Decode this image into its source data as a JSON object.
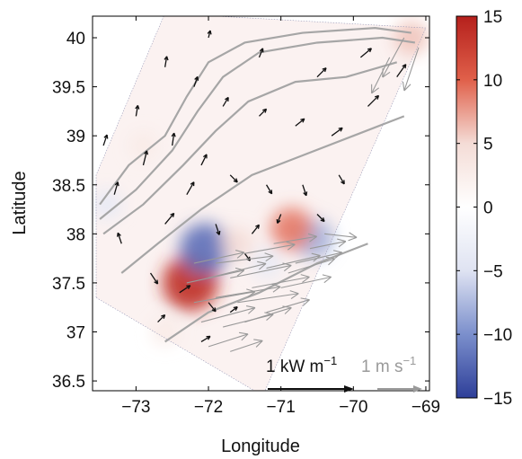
{
  "chart_data": {
    "type": "map",
    "xlabel": "Longitude",
    "ylabel": "Latitude",
    "xlim": [
      -73.6,
      -68.95
    ],
    "ylim": [
      36.4,
      40.22
    ],
    "x_ticks": [
      {
        "value": -73,
        "label": "−73"
      },
      {
        "value": -72,
        "label": "−72"
      },
      {
        "value": -71,
        "label": "−71"
      },
      {
        "value": -70,
        "label": "−70"
      },
      {
        "value": -69,
        "label": "−69"
      }
    ],
    "y_ticks": [
      {
        "value": 36.5,
        "label": "36.5"
      },
      {
        "value": 37,
        "label": "37"
      },
      {
        "value": 37.5,
        "label": "37.5"
      },
      {
        "value": 38,
        "label": "38"
      },
      {
        "value": 38.5,
        "label": "38.5"
      },
      {
        "value": 39,
        "label": "39"
      },
      {
        "value": 39.5,
        "label": "39.5"
      },
      {
        "value": 40,
        "label": "40"
      }
    ],
    "colorbar": {
      "min": -15,
      "max": 15,
      "ticks": [
        {
          "value": 15,
          "label": "15"
        },
        {
          "value": 10,
          "label": "10"
        },
        {
          "value": 5,
          "label": "5"
        },
        {
          "value": 0,
          "label": "0"
        },
        {
          "value": -5,
          "label": "−5"
        },
        {
          "value": -10,
          "label": "−10"
        },
        {
          "value": -15,
          "label": "−15"
        }
      ],
      "colors": [
        "#2e3f99",
        "#7b8fcc",
        "#dfe3f2",
        "#ffffff",
        "#f4dcd6",
        "#e0604a",
        "#b5201c"
      ]
    },
    "field_blobs": [
      {
        "lon": -72.25,
        "lat": 37.5,
        "value": 14
      },
      {
        "lon": -72.05,
        "lat": 37.85,
        "value": -12
      },
      {
        "lon": -70.55,
        "lat": 37.95,
        "value": -8
      },
      {
        "lon": -70.85,
        "lat": 38.05,
        "value": 9
      },
      {
        "lon": -71.6,
        "lat": 37.9,
        "value": 5
      },
      {
        "lon": -71.2,
        "lat": 37.7,
        "value": -4
      },
      {
        "lon": -73.4,
        "lat": 38.3,
        "value": -4
      },
      {
        "lon": -69.2,
        "lat": 40.0,
        "value": 6
      },
      {
        "lon": -72.9,
        "lat": 38.9,
        "value": 3
      },
      {
        "lon": -72.6,
        "lat": 37.0,
        "value": 3
      }
    ],
    "domain_polygon": [
      [
        -73.55,
        37.35
      ],
      [
        -71.25,
        36.35
      ],
      [
        -69.0,
        40.1
      ],
      [
        -72.6,
        40.25
      ],
      [
        -73.55,
        38.6
      ]
    ],
    "isobaths": [
      {
        "level": 1,
        "points": [
          [
            -73.5,
            38.3
          ],
          [
            -73.1,
            38.7
          ],
          [
            -72.6,
            39.0
          ],
          [
            -72.3,
            39.4
          ],
          [
            -72.0,
            39.75
          ],
          [
            -71.5,
            39.95
          ],
          [
            -70.7,
            40.05
          ],
          [
            -69.7,
            40.1
          ],
          [
            -69.2,
            40.05
          ]
        ]
      },
      {
        "level": 2,
        "points": [
          [
            -73.5,
            38.15
          ],
          [
            -73.0,
            38.45
          ],
          [
            -72.5,
            38.85
          ],
          [
            -72.15,
            39.25
          ],
          [
            -71.8,
            39.6
          ],
          [
            -71.3,
            39.85
          ],
          [
            -70.5,
            39.95
          ],
          [
            -69.6,
            40.0
          ],
          [
            -69.15,
            39.95
          ]
        ]
      },
      {
        "level": 3,
        "points": [
          [
            -73.45,
            38.0
          ],
          [
            -72.9,
            38.3
          ],
          [
            -72.35,
            38.7
          ],
          [
            -71.9,
            39.05
          ],
          [
            -71.45,
            39.35
          ],
          [
            -70.8,
            39.55
          ],
          [
            -70.1,
            39.6
          ],
          [
            -69.4,
            39.75
          ]
        ]
      },
      {
        "level": 4,
        "points": [
          [
            -73.2,
            37.6
          ],
          [
            -72.7,
            37.9
          ],
          [
            -72.1,
            38.25
          ],
          [
            -71.4,
            38.6
          ],
          [
            -70.7,
            38.8
          ],
          [
            -70.0,
            39.0
          ],
          [
            -69.3,
            39.2
          ]
        ]
      },
      {
        "level": 5,
        "points": [
          [
            -72.6,
            36.9
          ],
          [
            -72.0,
            37.2
          ],
          [
            -71.3,
            37.4
          ],
          [
            -70.5,
            37.7
          ],
          [
            -69.8,
            37.9
          ]
        ]
      }
    ],
    "energy_flux_vectors": [
      {
        "lon": -72.6,
        "lat": 39.7,
        "u": 0.05,
        "v": 0.3
      },
      {
        "lon": -72.2,
        "lat": 39.5,
        "u": 0.1,
        "v": 0.28
      },
      {
        "lon": -71.8,
        "lat": 39.3,
        "u": 0.15,
        "v": 0.25
      },
      {
        "lon": -71.3,
        "lat": 39.2,
        "u": 0.2,
        "v": 0.2
      },
      {
        "lon": -70.8,
        "lat": 39.1,
        "u": 0.25,
        "v": 0.2
      },
      {
        "lon": -70.3,
        "lat": 39.0,
        "u": 0.3,
        "v": 0.22
      },
      {
        "lon": -69.8,
        "lat": 39.3,
        "u": 0.3,
        "v": 0.3
      },
      {
        "lon": -69.4,
        "lat": 39.6,
        "u": 0.25,
        "v": 0.35
      },
      {
        "lon": -73.3,
        "lat": 38.4,
        "u": 0.1,
        "v": 0.35
      },
      {
        "lon": -72.9,
        "lat": 38.7,
        "u": 0.1,
        "v": 0.4
      },
      {
        "lon": -72.5,
        "lat": 38.9,
        "u": 0.05,
        "v": 0.35
      },
      {
        "lon": -72.1,
        "lat": 38.7,
        "u": 0.15,
        "v": 0.3
      },
      {
        "lon": -71.7,
        "lat": 38.6,
        "u": 0.2,
        "v": -0.2
      },
      {
        "lon": -71.2,
        "lat": 38.5,
        "u": 0.15,
        "v": -0.25
      },
      {
        "lon": -70.7,
        "lat": 38.5,
        "u": 0.1,
        "v": -0.3
      },
      {
        "lon": -70.2,
        "lat": 38.6,
        "u": 0.15,
        "v": -0.25
      },
      {
        "lon": -73.2,
        "lat": 37.9,
        "u": -0.1,
        "v": 0.3
      },
      {
        "lon": -72.8,
        "lat": 37.6,
        "u": 0.2,
        "v": -0.3
      },
      {
        "lon": -72.4,
        "lat": 37.4,
        "u": 0.3,
        "v": 0.2
      },
      {
        "lon": -72.0,
        "lat": 37.3,
        "u": 0.2,
        "v": -0.25
      },
      {
        "lon": -71.5,
        "lat": 37.8,
        "u": 0.15,
        "v": -0.2
      },
      {
        "lon": -71.0,
        "lat": 38.2,
        "u": -0.1,
        "v": -0.25
      },
      {
        "lon": -70.5,
        "lat": 38.2,
        "u": 0.2,
        "v": -0.2
      },
      {
        "lon": -72.6,
        "lat": 38.1,
        "u": 0.25,
        "v": 0.3
      },
      {
        "lon": -72.3,
        "lat": 38.4,
        "u": 0.2,
        "v": 0.35
      },
      {
        "lon": -71.9,
        "lat": 38.1,
        "u": 0.1,
        "v": -0.3
      },
      {
        "lon": -71.4,
        "lat": 38.0,
        "u": 0.2,
        "v": 0.25
      },
      {
        "lon": -72.7,
        "lat": 37.1,
        "u": 0.2,
        "v": 0.2
      },
      {
        "lon": -72.1,
        "lat": 36.9,
        "u": 0.25,
        "v": 0.15
      },
      {
        "lon": -71.7,
        "lat": 37.2,
        "u": 0.2,
        "v": 0.15
      },
      {
        "lon": -73.45,
        "lat": 38.9,
        "u": 0.1,
        "v": 0.3
      },
      {
        "lon": -73.0,
        "lat": 39.2,
        "u": 0.05,
        "v": 0.3
      },
      {
        "lon": -72.0,
        "lat": 40.0,
        "u": 0.05,
        "v": 0.2
      },
      {
        "lon": -71.3,
        "lat": 39.8,
        "u": 0.1,
        "v": 0.25
      },
      {
        "lon": -70.5,
        "lat": 39.6,
        "u": 0.25,
        "v": 0.25
      },
      {
        "lon": -69.9,
        "lat": 39.8,
        "u": 0.3,
        "v": 0.25
      }
    ],
    "velocity_vectors": [
      {
        "lon": -72.3,
        "lat": 37.5,
        "u": 1.6,
        "v": 0.35
      },
      {
        "lon": -72.2,
        "lat": 37.3,
        "u": 1.7,
        "v": 0.3
      },
      {
        "lon": -72.0,
        "lat": 37.55,
        "u": 1.6,
        "v": 0.4
      },
      {
        "lon": -71.9,
        "lat": 37.35,
        "u": 1.8,
        "v": 0.3
      },
      {
        "lon": -71.7,
        "lat": 37.55,
        "u": 1.7,
        "v": 0.35
      },
      {
        "lon": -71.6,
        "lat": 37.3,
        "u": 1.7,
        "v": 0.25
      },
      {
        "lon": -71.4,
        "lat": 37.45,
        "u": 1.6,
        "v": 0.3
      },
      {
        "lon": -71.2,
        "lat": 37.65,
        "u": 1.5,
        "v": 0.35
      },
      {
        "lon": -71.0,
        "lat": 37.45,
        "u": 1.4,
        "v": 0.3
      },
      {
        "lon": -70.8,
        "lat": 37.7,
        "u": 1.3,
        "v": 0.3
      },
      {
        "lon": -70.6,
        "lat": 37.85,
        "u": 1.0,
        "v": 0.2
      },
      {
        "lon": -70.4,
        "lat": 38.0,
        "u": 0.9,
        "v": -0.1
      },
      {
        "lon": -72.1,
        "lat": 37.1,
        "u": 1.5,
        "v": 0.4
      },
      {
        "lon": -71.8,
        "lat": 37.05,
        "u": 1.4,
        "v": 0.35
      },
      {
        "lon": -71.5,
        "lat": 37.1,
        "u": 1.3,
        "v": 0.4
      },
      {
        "lon": -71.2,
        "lat": 37.2,
        "u": 1.2,
        "v": 0.35
      },
      {
        "lon": -72.0,
        "lat": 36.85,
        "u": 1.1,
        "v": 0.35
      },
      {
        "lon": -71.7,
        "lat": 36.8,
        "u": 0.9,
        "v": 0.3
      },
      {
        "lon": -71.9,
        "lat": 37.7,
        "u": 1.6,
        "v": 0.2
      },
      {
        "lon": -71.5,
        "lat": 37.8,
        "u": 1.4,
        "v": 0.25
      },
      {
        "lon": -71.1,
        "lat": 37.9,
        "u": 1.2,
        "v": 0.2
      },
      {
        "lon": -70.9,
        "lat": 37.6,
        "u": 1.3,
        "v": 0.4
      },
      {
        "lon": -72.2,
        "lat": 37.7,
        "u": 1.4,
        "v": 0.3
      },
      {
        "lon": -69.5,
        "lat": 39.8,
        "u": -0.5,
        "v": -1.0
      },
      {
        "lon": -69.3,
        "lat": 40.0,
        "u": -0.6,
        "v": -1.1
      },
      {
        "lon": -69.1,
        "lat": 39.9,
        "u": -0.4,
        "v": -1.2
      }
    ],
    "scale_vectors": {
      "energy_flux": {
        "label": "1 kW m",
        "sup": "−1",
        "magnitude": 1
      },
      "velocity": {
        "label": "1 m s",
        "sup": "−1",
        "magnitude": 1
      }
    },
    "colors": {
      "energy_flux_arrow": "#111111",
      "velocity_arrow": "#999999",
      "isobath": "#a6a6a6"
    }
  }
}
